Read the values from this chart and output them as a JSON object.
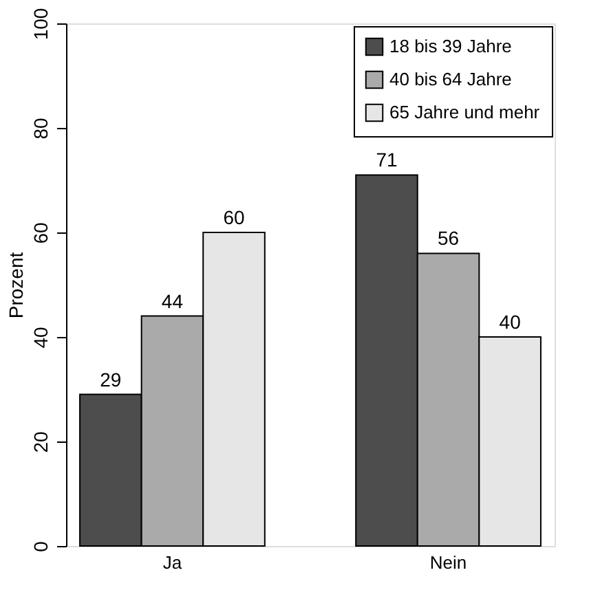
{
  "chart_data": {
    "type": "bar",
    "ylabel": "Prozent",
    "categories": [
      "Ja",
      "Nein"
    ],
    "series": [
      {
        "name": "18 bis 39 Jahre",
        "color": "#4d4d4d",
        "values": [
          29,
          71
        ]
      },
      {
        "name": "40 bis 64 Jahre",
        "color": "#aaaaaa",
        "values": [
          44,
          56
        ]
      },
      {
        "name": "65 Jahre und mehr",
        "color": "#e6e6e6",
        "values": [
          60,
          40
        ]
      }
    ],
    "ylim": [
      0,
      100
    ],
    "yticks": [
      0,
      20,
      40,
      60,
      80,
      100
    ],
    "grid": false,
    "legend": "top right",
    "data_labels": true
  }
}
